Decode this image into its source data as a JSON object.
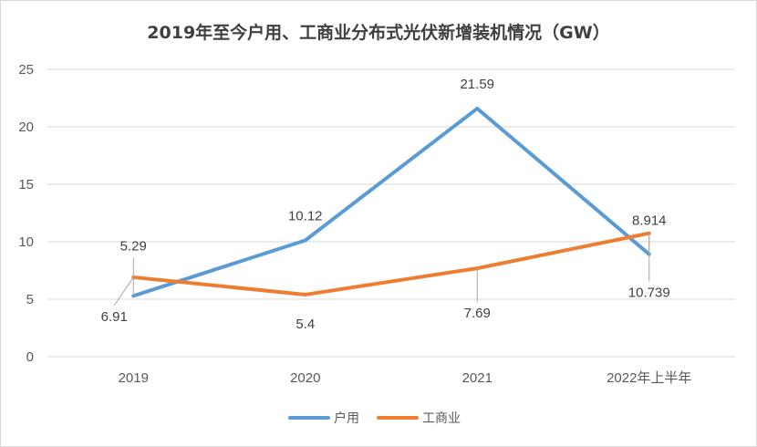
{
  "chart_data": {
    "type": "line",
    "title": "2019年至今户用、工商业分布式光伏新增装机情况（GW）",
    "categories": [
      "2019",
      "2020",
      "2021",
      "2022年上半年"
    ],
    "ylim": [
      0,
      25
    ],
    "yticks": [
      0,
      5,
      10,
      15,
      20,
      25
    ],
    "grid": true,
    "legend_position": "bottom",
    "series": [
      {
        "name": "户用",
        "color": "#5b9bd5",
        "values": [
          5.29,
          10.12,
          21.59,
          8.914
        ],
        "labels": [
          "5.29",
          "10.12",
          "21.59",
          "8.914"
        ]
      },
      {
        "name": "工商业",
        "color": "#ed7d31",
        "values": [
          6.91,
          5.4,
          7.69,
          10.739
        ],
        "labels": [
          "6.91",
          "5.4",
          "7.69",
          "10.739"
        ]
      }
    ]
  }
}
